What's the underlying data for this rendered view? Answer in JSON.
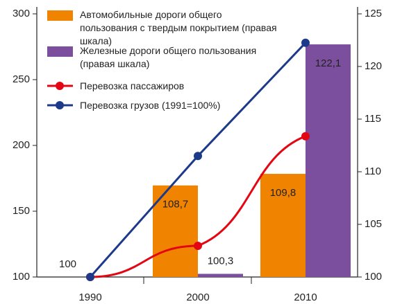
{
  "chart_data": {
    "type": "bar-line",
    "categories": [
      "1990",
      "2000",
      "2010"
    ],
    "series": [
      {
        "name": "Автомобильные дороги общего пользования с твердым покрытием (правая шкала)",
        "kind": "bar",
        "axis": "y2",
        "color": "#f08300",
        "values": [
          100,
          108.7,
          109.8
        ],
        "value_labels": [
          "100",
          "108,7",
          "109,8"
        ]
      },
      {
        "name": "Железные дороги общего пользования (правая шкала)",
        "kind": "bar",
        "axis": "y2",
        "color": "#7b4f9e",
        "values": [
          100,
          100.3,
          122.1
        ],
        "value_labels": [
          null,
          "100,3",
          "122,1"
        ]
      },
      {
        "name": "Перевозка пассажиров",
        "kind": "line",
        "smooth": true,
        "color": "#e30613",
        "values": [
          100,
          123.7,
          207
        ]
      },
      {
        "name": "Перевозка грузов (1991=100%)",
        "kind": "line",
        "color": "#1d3a8a",
        "values": [
          100,
          192,
          278
        ]
      }
    ],
    "ylim": [
      100,
      300
    ],
    "yticks": [
      100,
      150,
      200,
      250,
      300
    ],
    "y2lim": [
      100,
      125
    ],
    "y2ticks": [
      100,
      105,
      110,
      115,
      120,
      125
    ]
  }
}
